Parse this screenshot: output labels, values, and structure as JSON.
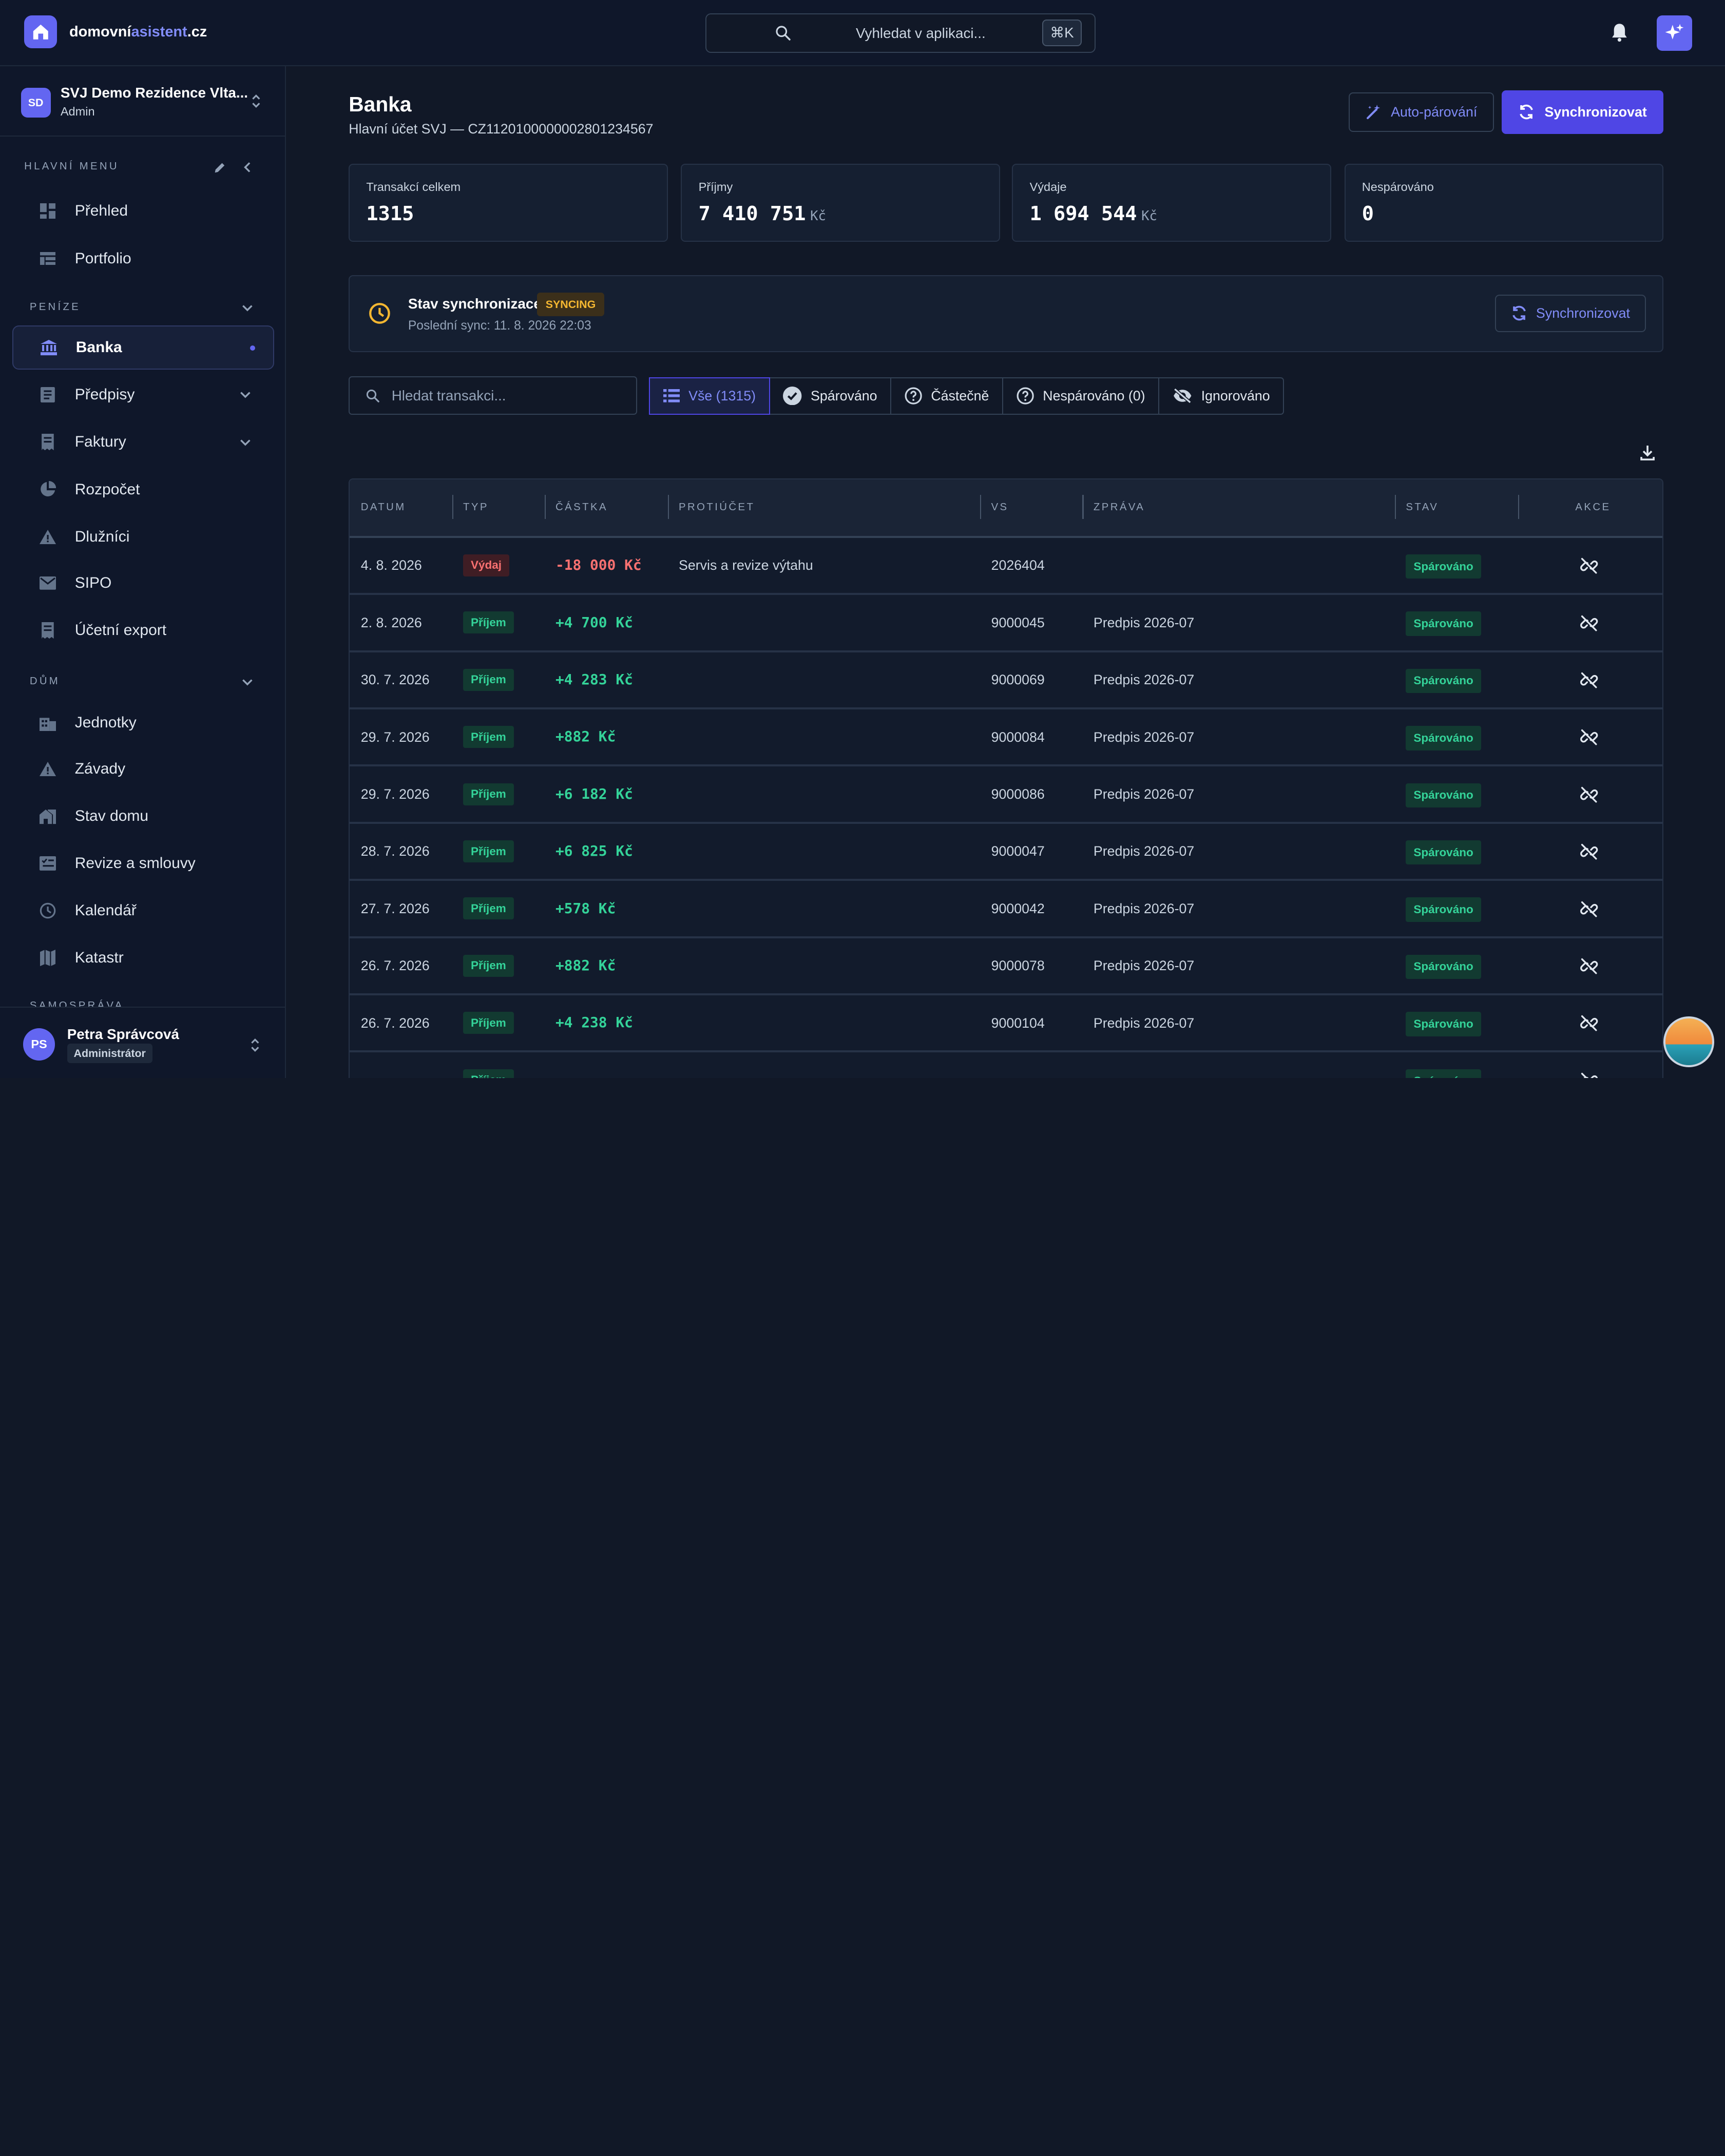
{
  "brand": {
    "part1": "domovní",
    "part2": "asistent",
    "part3": ".cz"
  },
  "search": {
    "placeholder": "Vyhledat v aplikaci...",
    "shortcut": "⌘K"
  },
  "org": {
    "initials": "SD",
    "name": "SVJ Demo Rezidence Vlta...",
    "role": "Admin"
  },
  "menu": {
    "heading": "HLAVNÍ MENU"
  },
  "sections": {
    "money": "PENÍZE",
    "house": "DŮM",
    "gov": "SAMOSPRÁVA"
  },
  "nav": {
    "overview": "Přehled",
    "portfolio": "Portfolio",
    "bank": "Banka",
    "prescriptions": "Předpisy",
    "invoices": "Faktury",
    "budget": "Rozpočet",
    "debtors": "Dlužníci",
    "sipo": "SIPO",
    "accounting": "Účetní export",
    "units": "Jednotky",
    "defects": "Závady",
    "house_state": "Stav domu",
    "revisions": "Revize a smlouvy",
    "calendar": "Kalendář",
    "cadastre": "Katastr"
  },
  "user": {
    "initials": "PS",
    "name": "Petra Správcová",
    "role": "Administrátor"
  },
  "page": {
    "title": "Banka",
    "subtitle": "Hlavní účet SVJ — CZ1120100000002801234567",
    "auto_btn": "Auto-párování",
    "sync_btn": "Synchronizovat"
  },
  "stats": [
    {
      "label": "Transakcí celkem",
      "value": "1315",
      "unit": ""
    },
    {
      "label": "Příjmy",
      "value": "7 410 751",
      "unit": "Kč"
    },
    {
      "label": "Výdaje",
      "value": "1 694 544",
      "unit": "Kč"
    },
    {
      "label": "Nespárováno",
      "value": "0",
      "unit": ""
    }
  ],
  "sync": {
    "label": "Stav synchronizace:",
    "status": "SYNCING",
    "last": "Poslední sync: 11. 8. 2026 22:03",
    "button": "Synchronizovat"
  },
  "tx_search": {
    "placeholder": "Hledat transakci..."
  },
  "filters": {
    "all": "Vše (1315)",
    "matched": "Spárováno",
    "partial": "Částečně",
    "unmatched": "Nespárováno (0)",
    "ignored": "Ignorováno"
  },
  "table": {
    "headers": {
      "date": "DATUM",
      "type": "TYP",
      "amount": "ČÁSTKA",
      "counter": "PROTIÚČET",
      "vs": "VS",
      "message": "ZPRÁVA",
      "status": "STAV",
      "actions": "AKCE"
    },
    "rows": [
      {
        "date": "4. 8. 2026",
        "type": "Výdaj",
        "amount": "-18 000 Kč",
        "counter": "Servis a revize výtahu",
        "vs": "2026404",
        "message": "",
        "status": "Spárováno"
      },
      {
        "date": "2. 8. 2026",
        "type": "Příjem",
        "amount": "+4 700 Kč",
        "counter": "",
        "vs": "9000045",
        "message": "Predpis 2026-07",
        "status": "Spárováno"
      },
      {
        "date": "30. 7. 2026",
        "type": "Příjem",
        "amount": "+4 283 Kč",
        "counter": "",
        "vs": "9000069",
        "message": "Predpis 2026-07",
        "status": "Spárováno"
      },
      {
        "date": "29. 7. 2026",
        "type": "Příjem",
        "amount": "+882 Kč",
        "counter": "",
        "vs": "9000084",
        "message": "Predpis 2026-07",
        "status": "Spárováno"
      },
      {
        "date": "29. 7. 2026",
        "type": "Příjem",
        "amount": "+6 182 Kč",
        "counter": "",
        "vs": "9000086",
        "message": "Predpis 2026-07",
        "status": "Spárováno"
      },
      {
        "date": "28. 7. 2026",
        "type": "Příjem",
        "amount": "+6 825 Kč",
        "counter": "",
        "vs": "9000047",
        "message": "Predpis 2026-07",
        "status": "Spárováno"
      },
      {
        "date": "27. 7. 2026",
        "type": "Příjem",
        "amount": "+578 Kč",
        "counter": "",
        "vs": "9000042",
        "message": "Predpis 2026-07",
        "status": "Spárováno"
      },
      {
        "date": "26. 7. 2026",
        "type": "Příjem",
        "amount": "+882 Kč",
        "counter": "",
        "vs": "9000078",
        "message": "Predpis 2026-07",
        "status": "Spárováno"
      },
      {
        "date": "26. 7. 2026",
        "type": "Příjem",
        "amount": "+4 238 Kč",
        "counter": "",
        "vs": "9000104",
        "message": "Predpis 2026-07",
        "status": "Spárováno"
      },
      {
        "date": "",
        "type": "Příjem",
        "amount": "",
        "counter": "",
        "vs": "",
        "message": "",
        "status": "Spárováno"
      }
    ]
  }
}
